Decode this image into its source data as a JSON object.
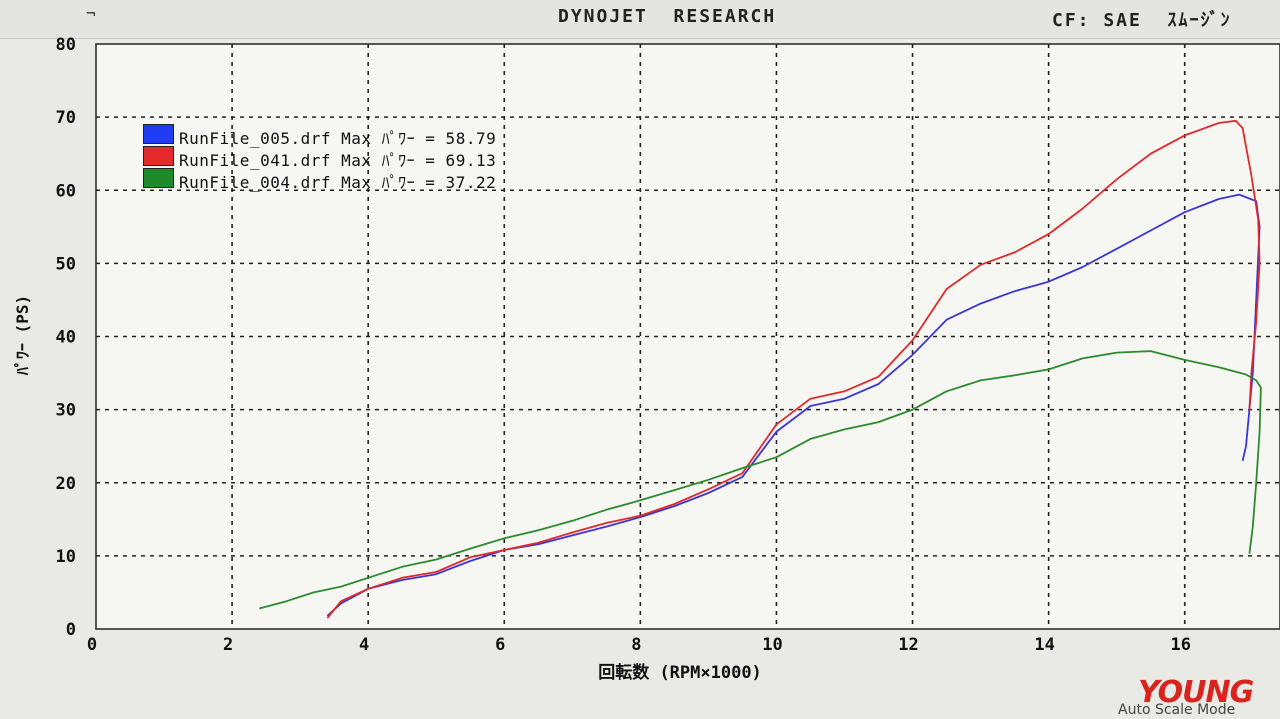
{
  "header": {
    "mark": "¬",
    "title": "DYNOJET  RESEARCH",
    "cf": "CF: SAE  ｽﾑｰｼﾞﾝ"
  },
  "legend": [
    {
      "swatch": "#1f3cf0",
      "text": "RunFile_005.drf Max ﾊﾟﾜｰ = 58.79"
    },
    {
      "swatch": "#e42a2a",
      "text": "RunFile_041.drf Max ﾊﾟﾜｰ = 69.13"
    },
    {
      "swatch": "#1e8a2a",
      "text": "RunFile_004.drf Max ﾊﾟﾜｰ = 37.22"
    }
  ],
  "chart_data": {
    "type": "line",
    "xlabel": "回転数 (RPM×1000)",
    "ylabel": "ﾊﾟﾜｰ (PS)",
    "xlim": [
      0,
      17.4
    ],
    "ylim": [
      0,
      80
    ],
    "x_ticks": [
      "0",
      "2",
      "4",
      "6",
      "8",
      "10",
      "12",
      "14",
      "16"
    ],
    "y_ticks": [
      "0",
      "10",
      "20",
      "30",
      "40",
      "50",
      "60",
      "70",
      "80"
    ],
    "grid": true,
    "legend_position": "top-left",
    "series": [
      {
        "name": "RunFile_005.drf",
        "color": "#3a36d8",
        "points": [
          [
            3.4,
            1.8
          ],
          [
            3.6,
            3.5
          ],
          [
            4,
            5.5
          ],
          [
            4.5,
            6.7
          ],
          [
            5,
            7.5
          ],
          [
            5.5,
            9.3
          ],
          [
            6,
            10.8
          ],
          [
            6.5,
            11.6
          ],
          [
            7,
            12.8
          ],
          [
            7.5,
            14.0
          ],
          [
            8,
            15.3
          ],
          [
            8.5,
            16.8
          ],
          [
            9,
            18.6
          ],
          [
            9.5,
            20.8
          ],
          [
            10,
            27.0
          ],
          [
            10.5,
            30.5
          ],
          [
            11,
            31.5
          ],
          [
            11.5,
            33.5
          ],
          [
            12,
            37.5
          ],
          [
            12.5,
            42.3
          ],
          [
            13,
            44.5
          ],
          [
            13.5,
            46.2
          ],
          [
            14,
            47.5
          ],
          [
            14.5,
            49.5
          ],
          [
            15,
            52.0
          ],
          [
            15.5,
            54.5
          ],
          [
            16,
            57.0
          ],
          [
            16.5,
            58.8
          ],
          [
            16.8,
            59.4
          ],
          [
            17.05,
            58.5
          ],
          [
            17.1,
            55
          ],
          [
            17.05,
            45
          ],
          [
            17.0,
            35
          ],
          [
            16.95,
            30
          ],
          [
            16.9,
            25
          ],
          [
            16.85,
            23
          ]
        ]
      },
      {
        "name": "RunFile_041.drf",
        "color": "#e02a2a",
        "points": [
          [
            3.4,
            1.5
          ],
          [
            3.6,
            3.8
          ],
          [
            4,
            5.5
          ],
          [
            4.5,
            7.0
          ],
          [
            5,
            7.8
          ],
          [
            5.5,
            9.8
          ],
          [
            6,
            10.8
          ],
          [
            6.5,
            11.8
          ],
          [
            7,
            13.2
          ],
          [
            7.5,
            14.5
          ],
          [
            8,
            15.5
          ],
          [
            8.5,
            17.1
          ],
          [
            9,
            19.1
          ],
          [
            9.5,
            21.3
          ],
          [
            10,
            28.0
          ],
          [
            10.5,
            31.5
          ],
          [
            11,
            32.5
          ],
          [
            11.5,
            34.5
          ],
          [
            12,
            39.5
          ],
          [
            12.5,
            46.5
          ],
          [
            13,
            49.8
          ],
          [
            13.5,
            51.5
          ],
          [
            14,
            54.0
          ],
          [
            14.5,
            57.5
          ],
          [
            15,
            61.5
          ],
          [
            15.5,
            65.0
          ],
          [
            16,
            67.5
          ],
          [
            16.5,
            69.2
          ],
          [
            16.75,
            69.5
          ],
          [
            16.85,
            68.5
          ],
          [
            16.98,
            62
          ],
          [
            17.08,
            56
          ],
          [
            17.1,
            50
          ],
          [
            17.05,
            42
          ],
          [
            16.98,
            35
          ],
          [
            16.95,
            30
          ]
        ]
      },
      {
        "name": "RunFile_004.drf",
        "color": "#2d8a2d",
        "points": [
          [
            2.4,
            2.8
          ],
          [
            2.8,
            3.8
          ],
          [
            3.2,
            5.0
          ],
          [
            3.6,
            5.8
          ],
          [
            4,
            7.0
          ],
          [
            4.5,
            8.5
          ],
          [
            5,
            9.5
          ],
          [
            5.5,
            11.0
          ],
          [
            6,
            12.4
          ],
          [
            6.5,
            13.5
          ],
          [
            7,
            14.8
          ],
          [
            7.5,
            16.3
          ],
          [
            8,
            17.6
          ],
          [
            8.5,
            19.0
          ],
          [
            9,
            20.4
          ],
          [
            9.5,
            22.0
          ],
          [
            10,
            23.5
          ],
          [
            10.5,
            26.0
          ],
          [
            11,
            27.3
          ],
          [
            11.5,
            28.3
          ],
          [
            12,
            30.0
          ],
          [
            12.5,
            32.5
          ],
          [
            13,
            34.0
          ],
          [
            13.5,
            34.7
          ],
          [
            14,
            35.5
          ],
          [
            14.5,
            37.0
          ],
          [
            15,
            37.8
          ],
          [
            15.5,
            38.0
          ],
          [
            16,
            36.8
          ],
          [
            16.5,
            35.8
          ],
          [
            16.9,
            34.8
          ],
          [
            17.05,
            34.0
          ],
          [
            17.12,
            33
          ],
          [
            17.1,
            27
          ],
          [
            17.05,
            20
          ],
          [
            17.0,
            14
          ],
          [
            16.95,
            10.3
          ]
        ]
      }
    ]
  },
  "watermark": "YOUNG",
  "status": "Auto Scale Mode"
}
